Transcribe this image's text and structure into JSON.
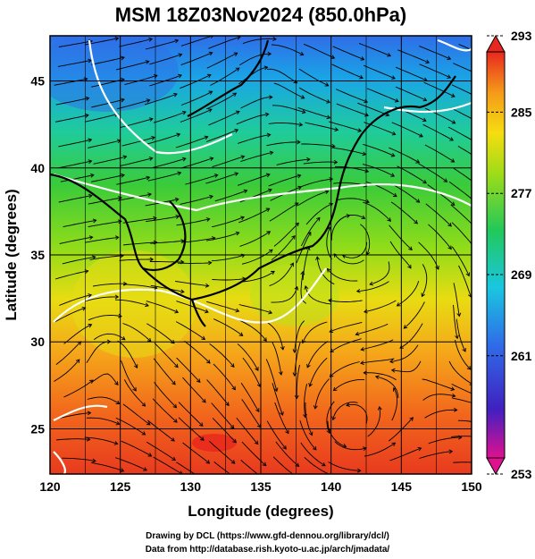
{
  "title": "MSM 18Z03Nov2024 (850.0hPa)",
  "x_axis": {
    "label": "Longitude (degrees)",
    "range": [
      120,
      150
    ],
    "ticks": [
      "120",
      "125",
      "130",
      "135",
      "140",
      "145",
      "150"
    ]
  },
  "y_axis": {
    "label": "Latitude  (degrees)",
    "range": [
      22.4,
      47.6
    ],
    "ticks": [
      "25",
      "30",
      "35",
      "40",
      "45"
    ]
  },
  "colorbar": {
    "range": [
      253,
      293
    ],
    "labels": [
      "293",
      "285",
      "277",
      "269",
      "261",
      "253"
    ],
    "colors": [
      "#e0108f",
      "#4020c0",
      "#2f6de8",
      "#19c7e0",
      "#22c85a",
      "#9edc18",
      "#f5dd10",
      "#f59a1a",
      "#e8281e"
    ]
  },
  "credits": {
    "line1": "Drawing by DCL (https://www.gfd-dennou.org/library/dcl/)",
    "line2": "Data from http://database.rish.kyoto-u.ac.jp/arch/jmadata/"
  }
}
